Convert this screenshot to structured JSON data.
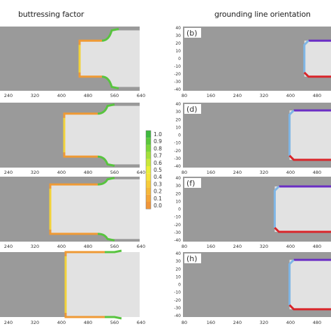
{
  "titles": {
    "left": "buttressing factor",
    "right": "grounding line orientation"
  },
  "colorbar": {
    "labels": [
      "1.0",
      "0.9",
      "0.8",
      "0.7",
      "0.6",
      "0.5",
      "0.4",
      "0.3",
      "0.2",
      "0.1",
      "0.0"
    ],
    "colors": [
      "#3fb93f",
      "#5cc83c",
      "#7dd63a",
      "#a4e03a",
      "#c9e83a",
      "#e9ef38",
      "#f5e43a",
      "#f7cc3a",
      "#f6b83a",
      "#f4a63a",
      "#f0963a"
    ]
  },
  "colors": {
    "bedrock": "#9a9a9a",
    "shelf": "#e2e2e2",
    "orange": "#ef9a35",
    "green": "#58c43f",
    "purple": "#6b2fc4",
    "red": "#d9252a",
    "blue": "#7fb6e6"
  },
  "chart_data": [
    {
      "type": "heatmap",
      "panel": "a",
      "label": "",
      "title": "buttressing factor",
      "xticks": [
        "240",
        "320",
        "400",
        "480",
        "560",
        "640"
      ],
      "yticks": []
    },
    {
      "type": "heatmap",
      "panel": "b",
      "label": "(b)",
      "title": "grounding line orientation",
      "xticks": [
        "80",
        "160",
        "240",
        "320",
        "400",
        "480"
      ],
      "yticks": [
        "40",
        "30",
        "20",
        "10",
        "0",
        "-10",
        "-20",
        "-30",
        "-40"
      ]
    },
    {
      "type": "heatmap",
      "panel": "c",
      "label": "",
      "xticks": [
        "240",
        "320",
        "400",
        "480",
        "560",
        "640"
      ],
      "yticks": []
    },
    {
      "type": "heatmap",
      "panel": "d",
      "label": "(d)",
      "xticks": [
        "80",
        "160",
        "240",
        "320",
        "400",
        "480"
      ],
      "yticks": [
        "40",
        "30",
        "20",
        "10",
        "0",
        "-10",
        "-20",
        "-30",
        "-40"
      ]
    },
    {
      "type": "heatmap",
      "panel": "e",
      "label": "",
      "xticks": [
        "240",
        "320",
        "400",
        "480",
        "560",
        "640"
      ],
      "yticks": []
    },
    {
      "type": "heatmap",
      "panel": "f",
      "label": "(f)",
      "xticks": [
        "80",
        "160",
        "240",
        "320",
        "400",
        "480"
      ],
      "yticks": [
        "40",
        "30",
        "20",
        "10",
        "0",
        "-10",
        "-20",
        "-30",
        "-40"
      ]
    },
    {
      "type": "heatmap",
      "panel": "g",
      "label": "",
      "xticks": [
        "240",
        "320",
        "400",
        "480",
        "560",
        "640"
      ],
      "yticks": []
    },
    {
      "type": "heatmap",
      "panel": "h",
      "label": "(h)",
      "xticks": [
        "80",
        "160",
        "240",
        "320",
        "400",
        "480"
      ],
      "yticks": [
        "40",
        "30",
        "20",
        "10",
        "0",
        "-10",
        "-20",
        "-30",
        "-40"
      ]
    }
  ]
}
